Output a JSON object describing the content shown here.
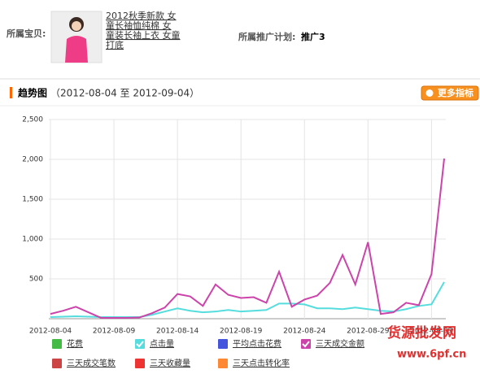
{
  "header": {
    "item_label": "所属宝贝:",
    "item_title": [
      "2012秋季新款 女",
      "童长袖恤纯棉 女",
      "童装长袖上衣 女童",
      "打底"
    ],
    "plan_label": "所属推广计划:",
    "plan_name": "推广3"
  },
  "section": {
    "title": "趋势图",
    "range": "（2012-08-04 至 2012-09-04）",
    "button": "更多指标"
  },
  "watermark": [
    "货源批发网",
    "www.6pf.cn"
  ],
  "chart_data": {
    "type": "line",
    "categories": [
      "2012-08-04",
      null,
      null,
      null,
      null,
      "2012-08-09",
      null,
      null,
      null,
      null,
      "2012-08-14",
      null,
      null,
      null,
      null,
      "2012-08-19",
      null,
      null,
      null,
      null,
      "2012-08-24",
      null,
      null,
      null,
      null,
      "2012-08-29",
      null,
      null,
      null,
      null,
      "2012-09-03",
      null
    ],
    "ylim": [
      0,
      2500
    ],
    "yticks": [
      500,
      {
        "value": 1000,
        "label": "1,000"
      },
      {
        "value": 1500,
        "label": "1,500"
      },
      {
        "value": 2000,
        "label": "2,000"
      },
      {
        "value": 2500,
        "label": "2,500"
      }
    ],
    "grid": true,
    "series": [
      {
        "name": "花费",
        "color": "#44bb44",
        "checked": false
      },
      {
        "name": "点击量",
        "color": "#55dddd",
        "checked": true,
        "values": [
          20,
          25,
          30,
          25,
          20,
          20,
          20,
          20,
          50,
          90,
          130,
          100,
          80,
          90,
          110,
          90,
          100,
          110,
          190,
          190,
          180,
          130,
          130,
          120,
          140,
          120,
          100,
          90,
          120,
          160,
          180,
          460
        ]
      },
      {
        "name": "平均点击花费",
        "color": "#4455dd",
        "checked": false
      },
      {
        "name": "三天成交金额",
        "color": "#cc44aa",
        "checked": true,
        "values": [
          60,
          100,
          150,
          80,
          10,
          10,
          10,
          15,
          70,
          140,
          310,
          280,
          160,
          430,
          300,
          260,
          270,
          200,
          590,
          150,
          240,
          290,
          450,
          800,
          430,
          960,
          60,
          80,
          200,
          170,
          560,
          2010
        ]
      },
      {
        "name": "三天成交笔数",
        "color": "#cc4444",
        "checked": false
      },
      {
        "name": "三天收藏量",
        "color": "#ee3333",
        "checked": false
      },
      {
        "name": "三天点击转化率",
        "color": "#ff8833",
        "checked": false
      }
    ]
  }
}
